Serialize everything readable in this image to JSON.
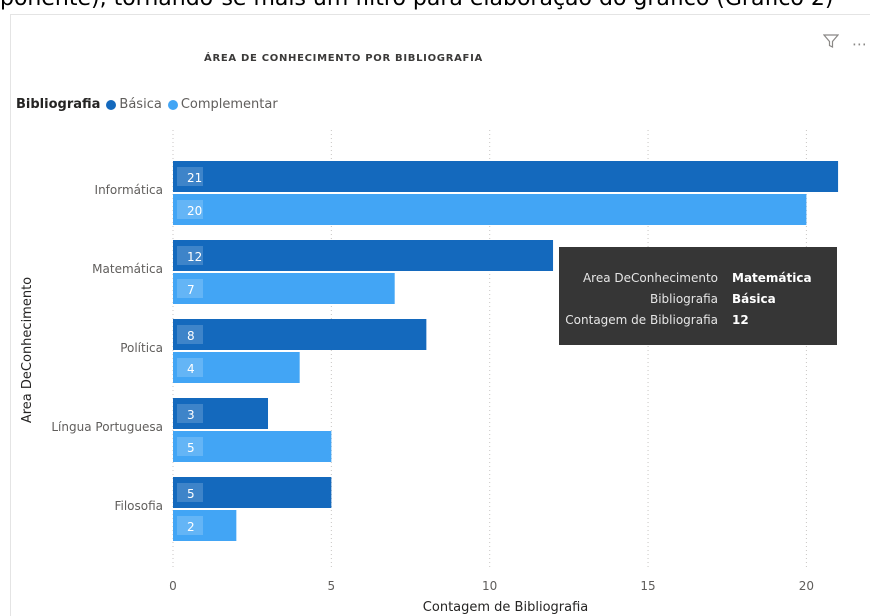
{
  "top_text": "ponente), tornando-se mais um filtro para elaboração do gráfico (Gráfico 2)",
  "header": {
    "filter_icon": "filter-icon",
    "more_icon": "more-options-icon",
    "more_label": "⋯"
  },
  "legend": {
    "title": "Bibliografia",
    "items": [
      {
        "label": "Básica",
        "color": "#1469bd"
      },
      {
        "label": "Complementar",
        "color": "#42a5f5"
      }
    ]
  },
  "tooltip": {
    "rows": [
      {
        "key": "Area DeConhecimento",
        "value": "Matemática"
      },
      {
        "key": "Bibliografia",
        "value": "Básica"
      },
      {
        "key": "Contagem de Bibliografia",
        "value": "12"
      }
    ]
  },
  "chart_data": {
    "type": "bar",
    "orientation": "horizontal",
    "title": "ÁREA DE CONHECIMENTO POR BIBLIOGRAFIA",
    "xlabel": "Contagem de Bibliografia",
    "ylabel": "Area DeConhecimento",
    "categories": [
      "Informática",
      "Matemática",
      "Política",
      "Língua Portuguesa",
      "Filosofia"
    ],
    "series": [
      {
        "name": "Básica",
        "color": "#1469bd",
        "values": [
          21,
          12,
          8,
          3,
          5
        ]
      },
      {
        "name": "Complementar",
        "color": "#42a5f5",
        "values": [
          20,
          7,
          4,
          5,
          2
        ]
      }
    ],
    "xlim": [
      0,
      21
    ],
    "xticks": [
      0,
      5,
      10,
      15,
      20
    ],
    "grid": true,
    "legend_position": "top-left",
    "highlighted": {
      "category": "Matemática",
      "series": "Básica"
    }
  }
}
